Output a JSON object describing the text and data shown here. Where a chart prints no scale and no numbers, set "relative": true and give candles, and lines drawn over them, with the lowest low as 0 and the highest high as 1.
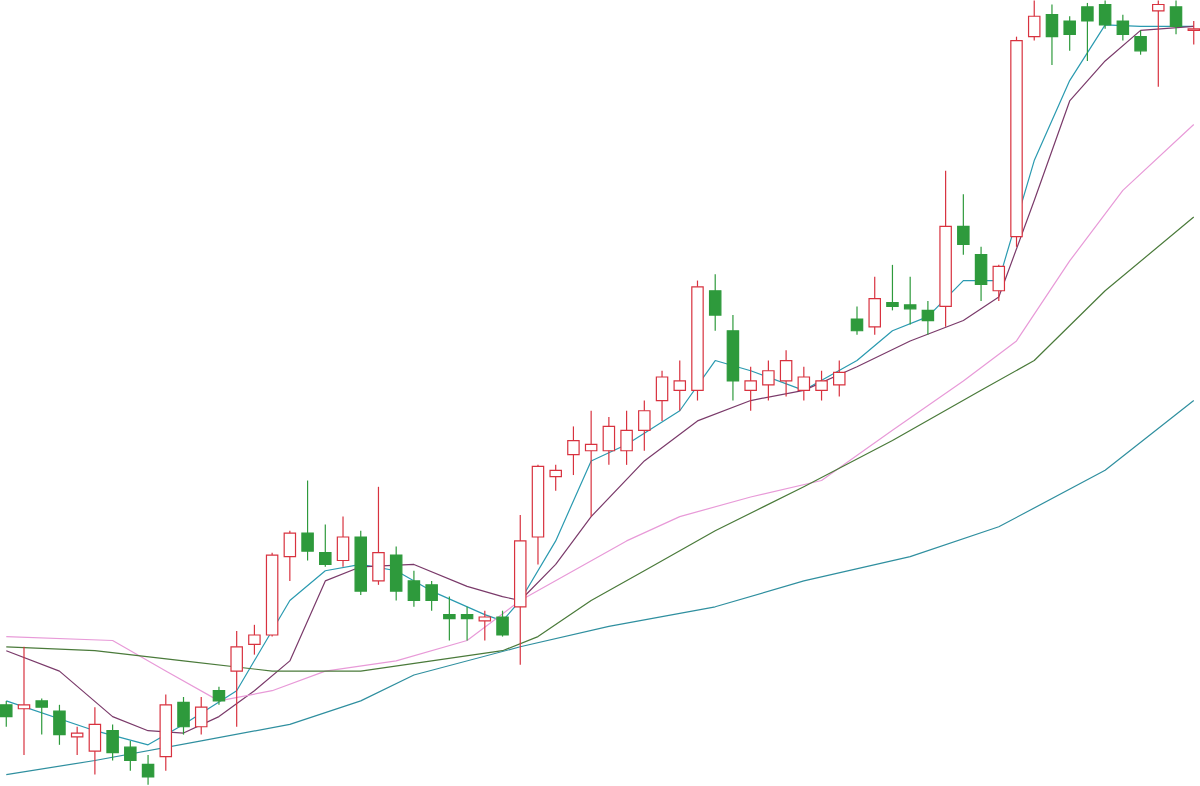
{
  "chart_data": {
    "type": "candlestick",
    "relative": true,
    "categories": [
      null,
      null,
      null,
      null,
      null,
      null,
      null,
      null,
      null,
      null,
      null,
      null,
      null,
      null,
      null,
      null,
      null,
      null,
      null,
      null,
      null,
      null,
      null,
      null,
      null,
      null,
      null,
      null,
      null,
      null,
      null,
      null,
      null,
      null,
      null,
      null,
      null,
      null,
      null,
      null,
      null,
      null,
      null,
      null,
      null,
      null,
      null,
      null,
      null,
      null,
      null,
      null,
      null,
      null,
      null,
      null,
      null,
      null,
      null,
      null,
      null,
      null,
      null,
      null,
      null,
      null,
      null,
      null
    ],
    "ohlc": [
      [
        0.102,
        0.107,
        0.074,
        0.087
      ],
      [
        0.097,
        0.176,
        0.038,
        0.102
      ],
      [
        0.107,
        0.11,
        0.064,
        0.099
      ],
      [
        0.094,
        0.102,
        0.051,
        0.064
      ],
      [
        0.061,
        0.074,
        0.038,
        0.066
      ],
      [
        0.043,
        0.099,
        0.013,
        0.077
      ],
      [
        0.069,
        0.077,
        0.031,
        0.041
      ],
      [
        0.048,
        0.056,
        0.018,
        0.031
      ],
      [
        0.026,
        0.038,
        0.0,
        0.01
      ],
      [
        0.036,
        0.115,
        0.018,
        0.102
      ],
      [
        0.105,
        0.112,
        0.064,
        0.074
      ],
      [
        0.074,
        0.112,
        0.064,
        0.099
      ],
      [
        0.12,
        0.125,
        0.102,
        0.107
      ],
      [
        0.145,
        0.196,
        0.074,
        0.176
      ],
      [
        0.179,
        0.204,
        0.166,
        0.191
      ],
      [
        0.191,
        0.296,
        0.189,
        0.293
      ],
      [
        0.291,
        0.324,
        0.26,
        0.321
      ],
      [
        0.321,
        0.388,
        0.286,
        0.298
      ],
      [
        0.296,
        0.332,
        0.278,
        0.281
      ],
      [
        0.286,
        0.342,
        0.278,
        0.316
      ],
      [
        0.316,
        0.324,
        0.242,
        0.247
      ],
      [
        0.26,
        0.38,
        0.255,
        0.296
      ],
      [
        0.293,
        0.304,
        0.235,
        0.247
      ],
      [
        0.26,
        0.273,
        0.227,
        0.235
      ],
      [
        0.255,
        0.26,
        0.222,
        0.235
      ],
      [
        0.217,
        0.24,
        0.184,
        0.212
      ],
      [
        0.217,
        0.227,
        0.184,
        0.212
      ],
      [
        0.209,
        0.222,
        0.184,
        0.214
      ],
      [
        0.214,
        0.222,
        0.189,
        0.191
      ],
      [
        0.227,
        0.344,
        0.153,
        0.311
      ],
      [
        0.316,
        0.408,
        0.281,
        0.406
      ],
      [
        0.393,
        0.408,
        0.375,
        0.401
      ],
      [
        0.421,
        0.457,
        0.395,
        0.439
      ],
      [
        0.426,
        0.477,
        0.342,
        0.434
      ],
      [
        0.426,
        0.469,
        0.408,
        0.457
      ],
      [
        0.426,
        0.477,
        0.408,
        0.452
      ],
      [
        0.452,
        0.49,
        0.426,
        0.477
      ],
      [
        0.49,
        0.528,
        0.464,
        0.52
      ],
      [
        0.503,
        0.541,
        0.477,
        0.515
      ],
      [
        0.503,
        0.643,
        0.49,
        0.635
      ],
      [
        0.63,
        0.651,
        0.579,
        0.599
      ],
      [
        0.579,
        0.599,
        0.49,
        0.515
      ],
      [
        0.503,
        0.533,
        0.477,
        0.515
      ],
      [
        0.51,
        0.541,
        0.49,
        0.528
      ],
      [
        0.515,
        0.554,
        0.495,
        0.541
      ],
      [
        0.503,
        0.533,
        0.49,
        0.52
      ],
      [
        0.503,
        0.528,
        0.49,
        0.515
      ],
      [
        0.51,
        0.541,
        0.495,
        0.526
      ],
      [
        0.594,
        0.61,
        0.574,
        0.579
      ],
      [
        0.584,
        0.648,
        0.574,
        0.62
      ],
      [
        0.615,
        0.663,
        0.605,
        0.61
      ],
      [
        0.612,
        0.648,
        0.587,
        0.607
      ],
      [
        0.605,
        0.617,
        0.574,
        0.592
      ],
      [
        0.61,
        0.783,
        0.584,
        0.712
      ],
      [
        0.712,
        0.753,
        0.676,
        0.689
      ],
      [
        0.676,
        0.686,
        0.617,
        0.638
      ],
      [
        0.63,
        0.663,
        0.617,
        0.661
      ],
      [
        0.699,
        0.954,
        0.686,
        0.949
      ],
      [
        0.954,
        1.0,
        0.949,
        0.98
      ],
      [
        0.982,
        0.995,
        0.918,
        0.954
      ],
      [
        0.974,
        0.98,
        0.936,
        0.957
      ],
      [
        0.992,
        0.997,
        0.923,
        0.974
      ],
      [
        0.995,
        1.0,
        0.964,
        0.969
      ],
      [
        0.974,
        0.982,
        0.949,
        0.957
      ],
      [
        0.954,
        0.962,
        0.931,
        0.936
      ],
      [
        0.987,
        1.0,
        0.89,
        0.995
      ],
      [
        0.992,
        1.0,
        0.957,
        0.967
      ],
      [
        0.962,
        0.974,
        0.944,
        0.964
      ]
    ],
    "series": [
      {
        "type": "line",
        "color": "#2a9ab0",
        "values": [
          0.107,
          null,
          null,
          null,
          null,
          0.069,
          null,
          null,
          0.051,
          null,
          0.077,
          null,
          null,
          0.12,
          null,
          null,
          0.235,
          null,
          0.273,
          null,
          0.281,
          null,
          0.273,
          null,
          0.247,
          null,
          null,
          0.217,
          0.209,
          0.235,
          null,
          0.311,
          null,
          0.413,
          null,
          0.434,
          null,
          null,
          0.477,
          null,
          0.541,
          null,
          0.528,
          null,
          null,
          0.503,
          null,
          null,
          0.541,
          null,
          0.579,
          null,
          0.597,
          null,
          0.643,
          null,
          0.643,
          null,
          0.796,
          null,
          0.898,
          null,
          0.969,
          null,
          0.967,
          null,
          null,
          0.967
        ]
      },
      {
        "type": "line",
        "color": "#7a3a6a",
        "values": [
          0.171,
          null,
          null,
          0.145,
          null,
          null,
          0.087,
          null,
          0.069,
          null,
          0.066,
          null,
          0.087,
          null,
          0.12,
          null,
          0.158,
          null,
          0.26,
          null,
          0.278,
          null,
          null,
          0.281,
          null,
          null,
          0.253,
          null,
          0.24,
          0.235,
          null,
          0.281,
          null,
          0.342,
          null,
          null,
          0.413,
          null,
          null,
          0.464,
          null,
          null,
          0.49,
          null,
          null,
          0.503,
          null,
          null,
          0.533,
          null,
          null,
          0.566,
          null,
          null,
          0.592,
          null,
          0.622,
          null,
          0.745,
          null,
          0.872,
          null,
          0.923,
          null,
          0.962,
          null,
          null,
          0.967
        ]
      },
      {
        "type": "line",
        "color": "#e89ad8",
        "values": [
          0.189,
          null,
          null,
          null,
          null,
          null,
          0.184,
          null,
          null,
          0.145,
          null,
          null,
          0.107,
          null,
          null,
          0.12,
          null,
          null,
          0.145,
          null,
          null,
          null,
          0.158,
          null,
          null,
          null,
          0.184,
          null,
          null,
          0.235,
          null,
          null,
          0.273,
          null,
          null,
          0.311,
          null,
          null,
          0.342,
          null,
          null,
          null,
          0.367,
          null,
          null,
          null,
          0.388,
          null,
          null,
          null,
          0.452,
          null,
          null,
          null,
          0.515,
          null,
          null,
          0.566,
          null,
          null,
          0.668,
          null,
          null,
          0.758,
          null,
          null,
          null,
          0.842
        ]
      },
      {
        "type": "line",
        "color": "#4a7a3a",
        "values": [
          0.176,
          null,
          null,
          null,
          null,
          0.171,
          null,
          null,
          null,
          null,
          0.158,
          null,
          null,
          null,
          null,
          0.145,
          null,
          null,
          null,
          null,
          0.145,
          null,
          null,
          null,
          0.158,
          null,
          null,
          null,
          0.171,
          null,
          0.189,
          null,
          null,
          0.235,
          null,
          null,
          0.273,
          null,
          null,
          null,
          0.324,
          null,
          null,
          null,
          null,
          0.38,
          null,
          null,
          null,
          null,
          0.439,
          null,
          null,
          null,
          null,
          0.503,
          null,
          null,
          0.541,
          null,
          null,
          null,
          0.63,
          null,
          null,
          null,
          null,
          0.724
        ]
      },
      {
        "type": "line",
        "color": "#2f8f9f",
        "values": [
          0.013,
          null,
          null,
          null,
          null,
          0.031,
          null,
          null,
          null,
          null,
          null,
          0.056,
          null,
          null,
          null,
          null,
          0.077,
          null,
          null,
          null,
          0.107,
          null,
          null,
          0.14,
          null,
          null,
          null,
          null,
          null,
          0.176,
          null,
          null,
          null,
          null,
          0.202,
          null,
          null,
          null,
          null,
          null,
          0.227,
          null,
          null,
          null,
          null,
          0.26,
          null,
          null,
          null,
          null,
          null,
          0.291,
          null,
          null,
          null,
          null,
          0.329,
          null,
          null,
          null,
          null,
          null,
          0.401,
          null,
          null,
          null,
          null,
          0.49
        ]
      }
    ]
  }
}
